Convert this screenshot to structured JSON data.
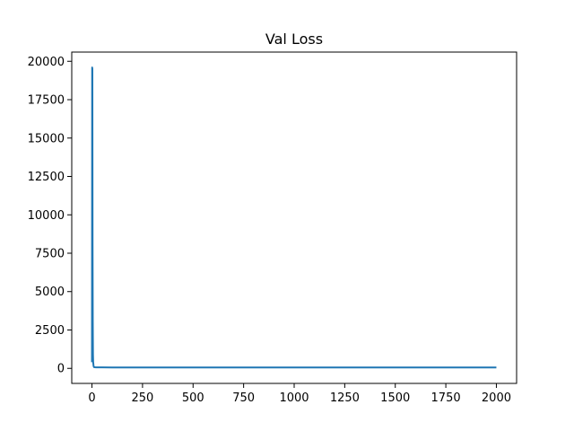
{
  "chart_data": {
    "type": "line",
    "title": "Val Loss",
    "xlabel": "",
    "ylabel": "",
    "xlim": [
      -100,
      2100
    ],
    "ylim": [
      -980,
      20600
    ],
    "x_ticks": [
      0,
      250,
      500,
      750,
      1000,
      1250,
      1500,
      1750,
      2000
    ],
    "x_tick_labels": [
      "0",
      "250",
      "500",
      "750",
      "1000",
      "1250",
      "1500",
      "1750",
      "2000"
    ],
    "y_ticks": [
      0,
      2500,
      5000,
      7500,
      10000,
      12500,
      15000,
      17500,
      20000
    ],
    "y_tick_labels": [
      "0",
      "2500",
      "5000",
      "7500",
      "10000",
      "12500",
      "15000",
      "17500",
      "20000"
    ],
    "grid": false,
    "series": [
      {
        "color": "#1f77b4",
        "x": [
          0,
          1,
          2,
          3,
          4,
          5,
          6,
          8,
          10,
          15,
          20,
          50,
          100,
          250,
          500,
          750,
          1000,
          1250,
          1500,
          1750,
          2000
        ],
        "y": [
          400,
          19600,
          19500,
          8000,
          3000,
          900,
          400,
          150,
          80,
          70,
          65,
          62,
          60,
          60,
          60,
          60,
          60,
          60,
          60,
          60,
          60
        ]
      }
    ]
  }
}
